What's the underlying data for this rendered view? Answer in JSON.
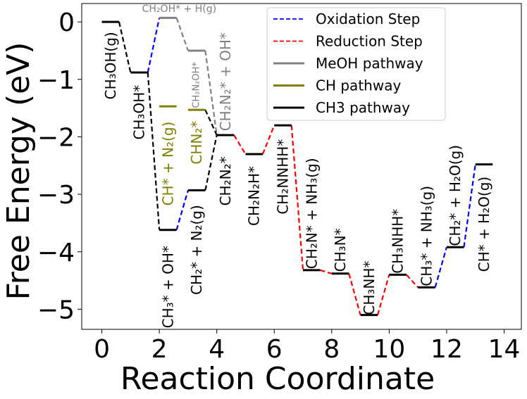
{
  "chart_data": {
    "type": "line",
    "xlabel": "Reaction Coordinate",
    "ylabel": "Free Energy (eV)",
    "xlim": [
      -0.7,
      14.6
    ],
    "ylim": [
      -5.35,
      0.32
    ],
    "xticks": [
      0,
      2,
      4,
      6,
      8,
      10,
      12,
      14
    ],
    "xtick_labels": [
      "0",
      "2",
      "4",
      "6",
      "8",
      "10",
      "12",
      "14"
    ],
    "yticks": [
      0,
      -1,
      -2,
      -3,
      -4,
      -5
    ],
    "ytick_labels": [
      "0",
      "−1",
      "−2",
      "−3",
      "−4",
      "−5"
    ],
    "grid": false,
    "legend_position": "top-right",
    "legend": [
      {
        "label": "Oxidation Step",
        "color": "#0000ff",
        "style": "dashed"
      },
      {
        "label": "Reduction Step",
        "color": "#ff0000",
        "style": "dashed"
      },
      {
        "label": "MeOH pathway",
        "color": "#808080",
        "style": "solid"
      },
      {
        "label": "CH pathway",
        "color": "#808000",
        "style": "solid"
      },
      {
        "label": "CH3 pathway",
        "color": "#000000",
        "style": "solid"
      }
    ],
    "levels": [
      {
        "x0": 0.0,
        "x1": 0.6,
        "y": 0.0,
        "color": "#000000"
      },
      {
        "x0": 1.0,
        "x1": 1.6,
        "y": -0.88,
        "color": "#000000"
      },
      {
        "x0": 2.0,
        "x1": 2.6,
        "y": 0.07,
        "color": "#808080"
      },
      {
        "x0": 3.0,
        "x1": 3.6,
        "y": -0.5,
        "color": "#808080"
      },
      {
        "x0": 4.0,
        "x1": 4.6,
        "y": -1.97,
        "color": "#808080"
      },
      {
        "x0": 2.0,
        "x1": 2.6,
        "y": -1.47,
        "color": "#808000"
      },
      {
        "x0": 3.0,
        "x1": 3.6,
        "y": -1.53,
        "color": "#808000"
      },
      {
        "x0": 2.0,
        "x1": 2.6,
        "y": -3.62,
        "color": "#000000"
      },
      {
        "x0": 3.0,
        "x1": 3.6,
        "y": -2.93,
        "color": "#000000"
      },
      {
        "x0": 4.0,
        "x1": 4.6,
        "y": -1.97,
        "color": "#000000"
      },
      {
        "x0": 5.0,
        "x1": 5.6,
        "y": -2.3,
        "color": "#000000"
      },
      {
        "x0": 6.0,
        "x1": 6.6,
        "y": -1.8,
        "color": "#000000"
      },
      {
        "x0": 7.0,
        "x1": 7.6,
        "y": -4.32,
        "color": "#000000"
      },
      {
        "x0": 8.0,
        "x1": 8.6,
        "y": -4.38,
        "color": "#000000"
      },
      {
        "x0": 9.0,
        "x1": 9.6,
        "y": -5.1,
        "color": "#000000"
      },
      {
        "x0": 10.0,
        "x1": 10.6,
        "y": -4.4,
        "color": "#000000"
      },
      {
        "x0": 11.0,
        "x1": 11.6,
        "y": -4.62,
        "color": "#000000"
      },
      {
        "x0": 12.0,
        "x1": 12.6,
        "y": -3.92,
        "color": "#000000"
      },
      {
        "x0": 13.0,
        "x1": 13.6,
        "y": -2.48,
        "color": "#000000"
      }
    ],
    "connectors": [
      {
        "x0": 0.6,
        "y0": 0.0,
        "x1": 1.0,
        "y1": -0.88,
        "color": "#000000"
      },
      {
        "x0": 1.6,
        "y0": -0.88,
        "x1": 2.0,
        "y1": 0.07,
        "color": "#0000ff"
      },
      {
        "x0": 2.6,
        "y0": 0.07,
        "x1": 3.0,
        "y1": -0.5,
        "color": "#808080"
      },
      {
        "x0": 3.6,
        "y0": -0.5,
        "x1": 4.0,
        "y1": -1.97,
        "color": "#808080"
      },
      {
        "x0": 1.6,
        "y0": -0.88,
        "x1": 2.0,
        "y1": -3.62,
        "color": "#000000"
      },
      {
        "x0": 2.6,
        "y0": -3.62,
        "x1": 3.0,
        "y1": -2.93,
        "color": "#0000ff"
      },
      {
        "x0": 3.6,
        "y0": -2.93,
        "x1": 4.0,
        "y1": -1.97,
        "color": "#000000"
      },
      {
        "x0": 3.6,
        "y0": -1.53,
        "x1": 4.0,
        "y1": -1.97,
        "color": "#000000"
      },
      {
        "x0": 4.6,
        "y0": -1.97,
        "x1": 5.0,
        "y1": -2.3,
        "color": "#ff0000"
      },
      {
        "x0": 5.6,
        "y0": -2.3,
        "x1": 6.0,
        "y1": -1.8,
        "color": "#ff0000"
      },
      {
        "x0": 6.6,
        "y0": -1.8,
        "x1": 7.0,
        "y1": -4.32,
        "color": "#ff0000"
      },
      {
        "x0": 7.6,
        "y0": -4.32,
        "x1": 8.0,
        "y1": -4.38,
        "color": "#ff0000"
      },
      {
        "x0": 8.6,
        "y0": -4.38,
        "x1": 9.0,
        "y1": -5.1,
        "color": "#ff0000"
      },
      {
        "x0": 9.6,
        "y0": -5.1,
        "x1": 10.0,
        "y1": -4.4,
        "color": "#ff0000"
      },
      {
        "x0": 10.6,
        "y0": -4.4,
        "x1": 11.0,
        "y1": -4.62,
        "color": "#ff0000"
      },
      {
        "x0": 11.6,
        "y0": -4.62,
        "x1": 12.0,
        "y1": -3.92,
        "color": "#0000ff"
      },
      {
        "x0": 12.6,
        "y0": -3.92,
        "x1": 13.0,
        "y1": -2.48,
        "color": "#0000ff"
      }
    ],
    "annotations": [
      {
        "text": "CH₃OH(g)",
        "x": 0.3,
        "y": -1.35,
        "rot": -90,
        "color": "#000000",
        "size": 20
      },
      {
        "text": "CH₃OH*",
        "x": 1.3,
        "y": -2.05,
        "rot": -90,
        "color": "#000000",
        "size": 20
      },
      {
        "text": "CH₂OH* + H(g)",
        "x": 1.4,
        "y": 0.17,
        "rot": 0,
        "color": "#808080",
        "size": 14
      },
      {
        "text": "CH₂N₂OH*",
        "x": 3.3,
        "y": -1.5,
        "rot": -90,
        "color": "#808080",
        "size": 13
      },
      {
        "text": "CH₂N₂* + OH*",
        "x": 4.3,
        "y": -1.9,
        "rot": -90,
        "color": "#808080",
        "size": 20
      },
      {
        "text": "CH* + N₂(g)",
        "x": 2.3,
        "y": -3.2,
        "rot": -90,
        "color": "#808000",
        "size": 20
      },
      {
        "text": "CHN₂*",
        "x": 3.3,
        "y": -2.48,
        "rot": -90,
        "color": "#808000",
        "size": 20
      },
      {
        "text": "CH₃* + OH*",
        "x": 2.3,
        "y": -5.33,
        "rot": -90,
        "color": "#000000",
        "size": 20
      },
      {
        "text": "CH₂* + N₂(g)",
        "x": 3.3,
        "y": -4.75,
        "rot": -90,
        "color": "#000000",
        "size": 20
      },
      {
        "text": "CH₂N₂*",
        "x": 4.3,
        "y": -3.2,
        "rot": -90,
        "color": "#000000",
        "size": 20
      },
      {
        "text": "CH₂N₂H*",
        "x": 5.3,
        "y": -3.55,
        "rot": -90,
        "color": "#000000",
        "size": 20
      },
      {
        "text": "CH₂NNHH*",
        "x": 6.3,
        "y": -3.35,
        "rot": -90,
        "color": "#000000",
        "size": 20
      },
      {
        "text": "CH₂N* + NH₃(g)",
        "x": 7.3,
        "y": -4.3,
        "rot": -90,
        "color": "#000000",
        "size": 20
      },
      {
        "text": "CH₃N*",
        "x": 8.3,
        "y": -4.35,
        "rot": -90,
        "color": "#000000",
        "size": 20
      },
      {
        "text": "CH₃NH*",
        "x": 9.3,
        "y": -5.1,
        "rot": -90,
        "color": "#000000",
        "size": 20
      },
      {
        "text": "CH₃NHH*",
        "x": 10.3,
        "y": -4.38,
        "rot": -90,
        "color": "#000000",
        "size": 20
      },
      {
        "text": "CH₃* + NH₃(g)",
        "x": 11.3,
        "y": -4.6,
        "rot": -90,
        "color": "#000000",
        "size": 20
      },
      {
        "text": "CH₂* + H₂O(g)",
        "x": 12.3,
        "y": -3.9,
        "rot": -90,
        "color": "#000000",
        "size": 20
      },
      {
        "text": "CH* + H₂O(g)",
        "x": 13.3,
        "y": -4.35,
        "rot": -90,
        "color": "#000000",
        "size": 20
      }
    ]
  }
}
